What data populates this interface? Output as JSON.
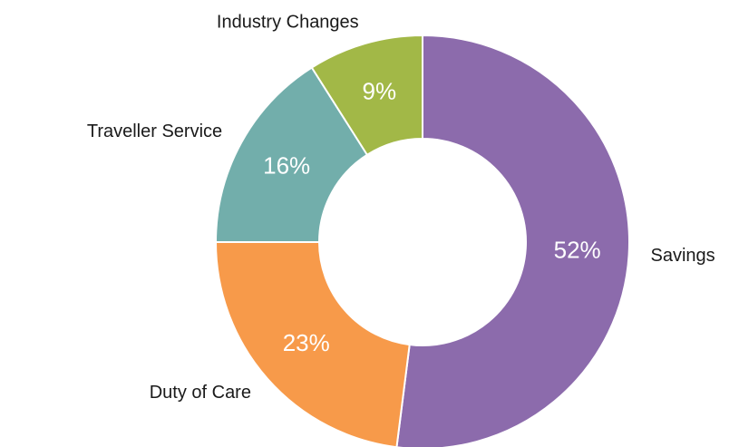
{
  "chart_data": {
    "type": "donut",
    "categories": [
      "Savings",
      "Duty of Care",
      "Traveller Service",
      "Industry Changes"
    ],
    "values": [
      52,
      23,
      16,
      9
    ],
    "value_labels": [
      "52%",
      "23%",
      "16%",
      "9%"
    ],
    "colors": [
      "#8c6bac",
      "#f79a4a",
      "#72aeab",
      "#a2b847"
    ]
  }
}
